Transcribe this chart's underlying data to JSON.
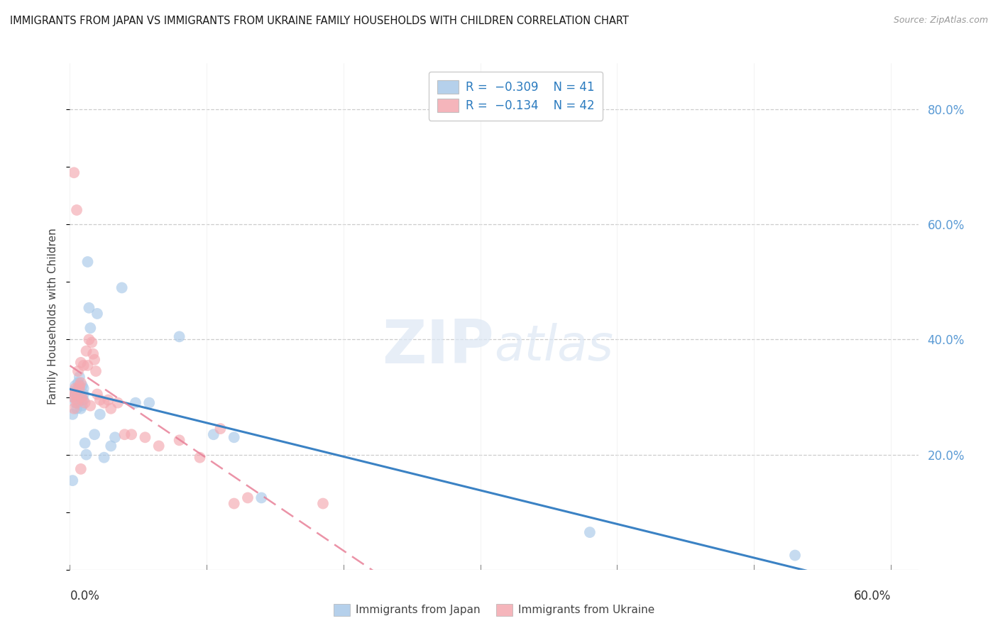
{
  "title": "IMMIGRANTS FROM JAPAN VS IMMIGRANTS FROM UKRAINE FAMILY HOUSEHOLDS WITH CHILDREN CORRELATION CHART",
  "source": "Source: ZipAtlas.com",
  "ylabel": "Family Households with Children",
  "right_yticklabels": [
    "20.0%",
    "40.0%",
    "60.0%",
    "80.0%"
  ],
  "right_yticks": [
    0.2,
    0.4,
    0.6,
    0.8
  ],
  "japan_color": "#a8c8e8",
  "ukraine_color": "#f4a8b0",
  "japan_line_color": "#3b82c4",
  "ukraine_line_color": "#e88098",
  "watermark_zip": "ZIP",
  "watermark_atlas": "atlas",
  "xlim": [
    0.0,
    0.62
  ],
  "ylim": [
    0.0,
    0.88
  ],
  "japan_scatter_x": [
    0.002,
    0.003,
    0.003,
    0.004,
    0.004,
    0.005,
    0.005,
    0.005,
    0.006,
    0.006,
    0.006,
    0.007,
    0.007,
    0.008,
    0.008,
    0.009,
    0.009,
    0.01,
    0.01,
    0.01,
    0.011,
    0.012,
    0.013,
    0.014,
    0.015,
    0.018,
    0.02,
    0.022,
    0.025,
    0.03,
    0.033,
    0.038,
    0.048,
    0.058,
    0.08,
    0.105,
    0.12,
    0.14,
    0.38,
    0.53,
    0.002
  ],
  "japan_scatter_y": [
    0.27,
    0.3,
    0.31,
    0.29,
    0.32,
    0.28,
    0.31,
    0.3,
    0.305,
    0.315,
    0.325,
    0.295,
    0.335,
    0.28,
    0.3,
    0.285,
    0.32,
    0.305,
    0.315,
    0.295,
    0.22,
    0.2,
    0.535,
    0.455,
    0.42,
    0.235,
    0.445,
    0.27,
    0.195,
    0.215,
    0.23,
    0.49,
    0.29,
    0.29,
    0.405,
    0.235,
    0.23,
    0.125,
    0.065,
    0.025,
    0.155
  ],
  "ukraine_scatter_x": [
    0.002,
    0.003,
    0.003,
    0.004,
    0.005,
    0.005,
    0.006,
    0.007,
    0.007,
    0.008,
    0.008,
    0.009,
    0.009,
    0.01,
    0.011,
    0.012,
    0.013,
    0.014,
    0.015,
    0.016,
    0.017,
    0.018,
    0.019,
    0.02,
    0.022,
    0.025,
    0.028,
    0.03,
    0.035,
    0.04,
    0.045,
    0.055,
    0.065,
    0.08,
    0.095,
    0.11,
    0.12,
    0.13,
    0.185,
    0.003,
    0.005,
    0.008
  ],
  "ukraine_scatter_y": [
    0.3,
    0.28,
    0.305,
    0.315,
    0.295,
    0.29,
    0.345,
    0.32,
    0.315,
    0.325,
    0.36,
    0.3,
    0.295,
    0.355,
    0.29,
    0.38,
    0.355,
    0.4,
    0.285,
    0.395,
    0.375,
    0.365,
    0.345,
    0.305,
    0.295,
    0.29,
    0.295,
    0.28,
    0.29,
    0.235,
    0.235,
    0.23,
    0.215,
    0.225,
    0.195,
    0.245,
    0.115,
    0.125,
    0.115,
    0.69,
    0.625,
    0.175
  ]
}
